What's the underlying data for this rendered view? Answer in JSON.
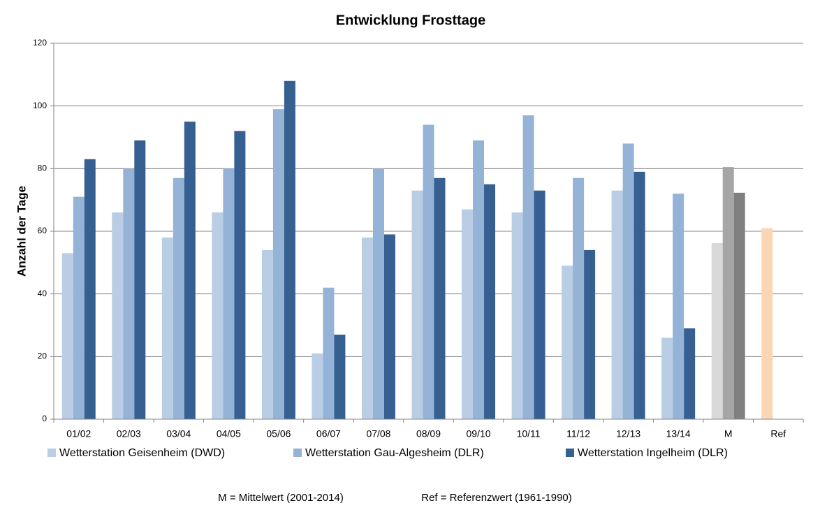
{
  "chart_data": {
    "type": "bar",
    "title": "Entwicklung Frosttage",
    "y_label": "Anzahl der Tage",
    "categories": [
      "01/02",
      "02/03",
      "03/04",
      "04/05",
      "05/06",
      "06/07",
      "07/08",
      "08/09",
      "09/10",
      "10/11",
      "11/12",
      "12/13",
      "13/14",
      "M",
      "Ref"
    ],
    "series": [
      {
        "name": "Wetterstation Geisenheim (DWD)",
        "color": "#b9cde5",
        "colors": [
          "#b9cde5",
          "#b9cde5",
          "#b9cde5",
          "#b9cde5",
          "#b9cde5",
          "#b9cde5",
          "#b9cde5",
          "#b9cde5",
          "#b9cde5",
          "#b9cde5",
          "#b9cde5",
          "#b9cde5",
          "#b9cde5",
          "#d9d9d9",
          "#fcd5b5"
        ],
        "values": [
          53,
          66,
          58,
          66,
          54,
          21,
          58,
          73,
          67,
          66,
          49,
          73,
          26,
          56.2,
          61
        ]
      },
      {
        "name": "Wetterstation Gau-Algesheim (DLR)",
        "color": "#95b3d7",
        "colors": [
          "#95b3d7",
          "#95b3d7",
          "#95b3d7",
          "#95b3d7",
          "#95b3d7",
          "#95b3d7",
          "#95b3d7",
          "#95b3d7",
          "#95b3d7",
          "#95b3d7",
          "#95b3d7",
          "#95b3d7",
          "#95b3d7",
          "#a6a6a6",
          "#95b3d7"
        ],
        "values": [
          71,
          80,
          77,
          80,
          99,
          42,
          80,
          94,
          89,
          97,
          77,
          88,
          72,
          80.5,
          null
        ]
      },
      {
        "name": "Wetterstation Ingelheim (DLR)",
        "color": "#366092",
        "colors": [
          "#366092",
          "#366092",
          "#366092",
          "#366092",
          "#366092",
          "#366092",
          "#366092",
          "#366092",
          "#366092",
          "#366092",
          "#366092",
          "#366092",
          "#366092",
          "#808080",
          "#366092"
        ],
        "values": [
          83,
          89,
          95,
          92,
          108,
          27,
          59,
          77,
          75,
          73,
          54,
          79,
          29,
          72.3,
          null
        ]
      }
    ],
    "ylim": [
      0,
      120
    ],
    "yticks": [
      0,
      20,
      40,
      60,
      80,
      100,
      120
    ],
    "grid": true,
    "legend": "bottom",
    "notes": [
      "M = Mittelwert (2001-2014)",
      "Ref = Referenzwert (1961-1990)"
    ]
  }
}
